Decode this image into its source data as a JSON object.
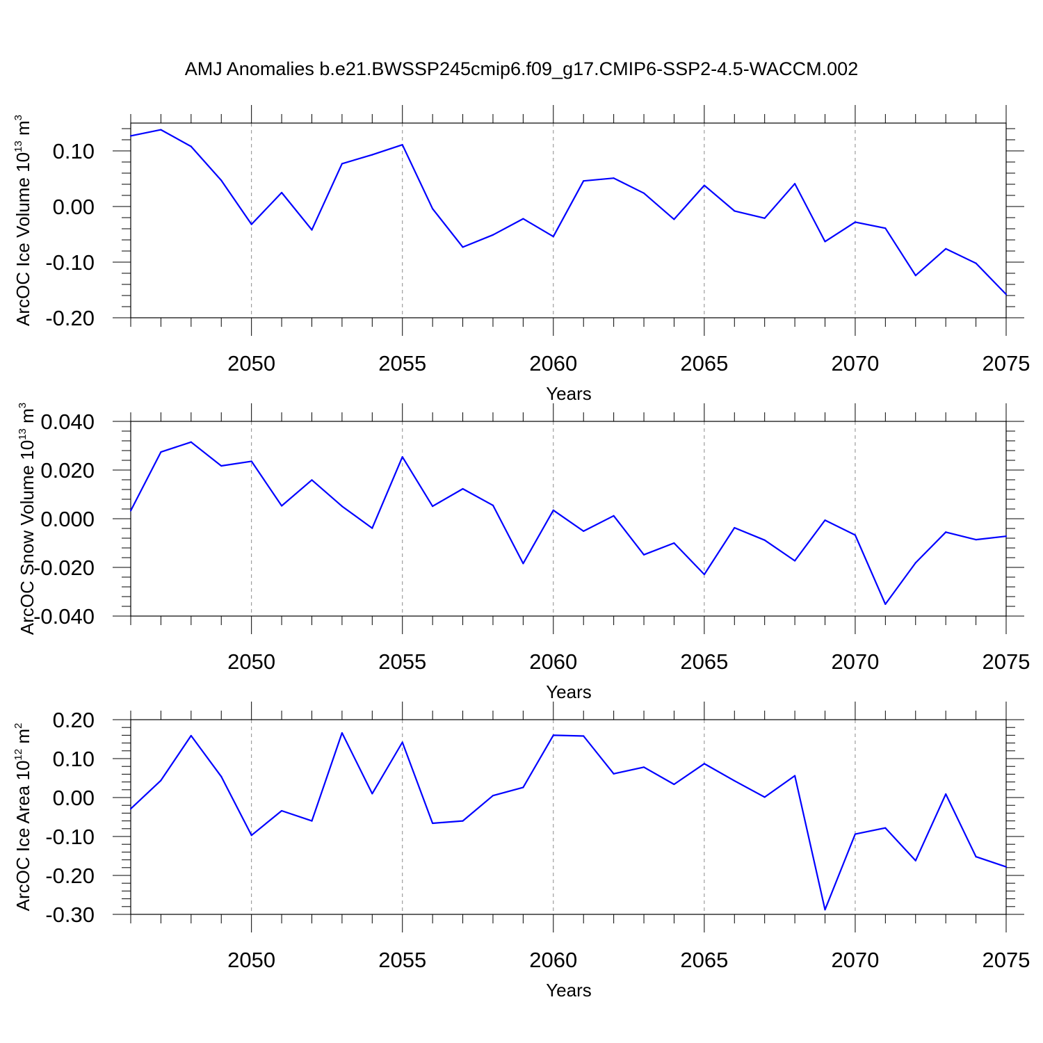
{
  "title": "AMJ Anomalies b.e21.BWSSP245cmip6.f09_g17.CMIP6-SSP2-4.5-WACCM.002",
  "line_color": "#0000ff",
  "chart_data": [
    {
      "type": "line",
      "ylabel": {
        "text": "ArcOC Ice Volume 10",
        "exponent": "13",
        "unit": " m",
        "unit_exponent": "3"
      },
      "xlabel": "Years",
      "xlim": [
        2046,
        2075
      ],
      "ylim": [
        -0.2,
        0.15
      ],
      "yticks": [
        -0.2,
        -0.1,
        0.0,
        0.1
      ],
      "ytick_labels": [
        "-0.20",
        "-0.10",
        "0.00",
        "0.10"
      ],
      "xticks": [
        2050,
        2055,
        2060,
        2065,
        2070,
        2075
      ],
      "xtick_labels": [
        "2050",
        "2055",
        "2060",
        "2065",
        "2070",
        "2075"
      ],
      "grid_x": true,
      "x": [
        2046,
        2047,
        2048,
        2049,
        2050,
        2051,
        2052,
        2053,
        2054,
        2055,
        2056,
        2057,
        2058,
        2059,
        2060,
        2061,
        2062,
        2063,
        2064,
        2065,
        2066,
        2067,
        2068,
        2069,
        2070,
        2071,
        2072,
        2073,
        2074,
        2075
      ],
      "y": [
        0.127,
        0.138,
        0.108,
        0.047,
        -0.032,
        0.025,
        -0.042,
        0.077,
        0.093,
        0.111,
        -0.004,
        -0.073,
        -0.051,
        -0.022,
        -0.054,
        0.046,
        0.051,
        0.024,
        -0.023,
        0.038,
        -0.008,
        -0.021,
        0.041,
        -0.063,
        -0.028,
        -0.039,
        -0.124,
        -0.076,
        -0.102,
        -0.158
      ]
    },
    {
      "type": "line",
      "ylabel": {
        "text": "ArcOC Snow Volume 10",
        "exponent": "13",
        "unit": " m",
        "unit_exponent": "3"
      },
      "xlabel": "Years",
      "xlim": [
        2046,
        2075
      ],
      "ylim": [
        -0.04,
        0.04
      ],
      "yticks": [
        -0.04,
        -0.02,
        0.0,
        0.02,
        0.04
      ],
      "ytick_labels": [
        "-0.040",
        "-0.020",
        "0.000",
        "0.020",
        "0.040"
      ],
      "xticks": [
        2050,
        2055,
        2060,
        2065,
        2070,
        2075
      ],
      "xtick_labels": [
        "2050",
        "2055",
        "2060",
        "2065",
        "2070",
        "2075"
      ],
      "grid_x": true,
      "x": [
        2046,
        2047,
        2048,
        2049,
        2050,
        2051,
        2052,
        2053,
        2054,
        2055,
        2056,
        2057,
        2058,
        2059,
        2060,
        2061,
        2062,
        2063,
        2064,
        2065,
        2066,
        2067,
        2068,
        2069,
        2070,
        2071,
        2072,
        2073,
        2074,
        2075
      ],
      "y": [
        0.0033,
        0.0274,
        0.0315,
        0.0217,
        0.0236,
        0.0053,
        0.0159,
        0.0051,
        -0.0039,
        0.0254,
        0.0051,
        0.0123,
        0.0055,
        -0.0184,
        0.0035,
        -0.0051,
        0.0012,
        -0.0148,
        -0.01,
        -0.0229,
        -0.0037,
        -0.0088,
        -0.0173,
        -0.0006,
        -0.0067,
        -0.0351,
        -0.0181,
        -0.0055,
        -0.0086,
        -0.0072
      ]
    },
    {
      "type": "line",
      "ylabel": {
        "text": "ArcOC Ice Area 10",
        "exponent": "12",
        "unit": " m",
        "unit_exponent": "2"
      },
      "xlabel": "Years",
      "xlim": [
        2046,
        2075
      ],
      "ylim": [
        -0.3,
        0.2
      ],
      "yticks": [
        -0.3,
        -0.2,
        -0.1,
        0.0,
        0.1,
        0.2
      ],
      "ytick_labels": [
        "-0.30",
        "-0.20",
        "-0.10",
        "0.00",
        "0.10",
        "0.20"
      ],
      "xticks": [
        2050,
        2055,
        2060,
        2065,
        2070,
        2075
      ],
      "xtick_labels": [
        "2050",
        "2055",
        "2060",
        "2065",
        "2070",
        "2075"
      ],
      "grid_x": true,
      "x": [
        2046,
        2047,
        2048,
        2049,
        2050,
        2051,
        2052,
        2053,
        2054,
        2055,
        2056,
        2057,
        2058,
        2059,
        2060,
        2061,
        2062,
        2063,
        2064,
        2065,
        2066,
        2067,
        2068,
        2069,
        2070,
        2071,
        2072,
        2073,
        2074,
        2075
      ],
      "y": [
        -0.029,
        0.044,
        0.159,
        0.054,
        -0.097,
        -0.034,
        -0.06,
        0.166,
        0.01,
        0.142,
        -0.066,
        -0.06,
        0.005,
        0.026,
        0.16,
        0.158,
        0.061,
        0.078,
        0.034,
        0.087,
        0.043,
        0.001,
        0.056,
        -0.288,
        -0.094,
        -0.078,
        -0.162,
        0.009,
        -0.152,
        -0.178
      ]
    }
  ]
}
